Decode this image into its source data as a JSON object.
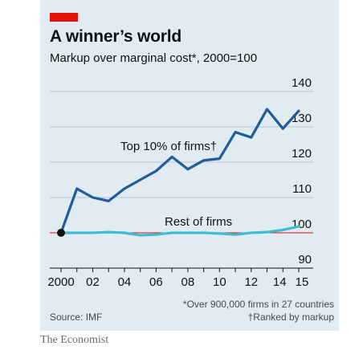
{
  "header": {
    "title": "A winner’s world",
    "subtitle": "Markup over marginal cost*, 2000=100"
  },
  "chart_data": {
    "type": "line",
    "title": "A winner’s world",
    "subtitle": "Markup over marginal cost*, 2000=100",
    "ylim": [
      90,
      140
    ],
    "yticks": [
      90,
      100,
      110,
      120,
      130,
      140
    ],
    "xticks": [
      2000,
      2002,
      2004,
      2006,
      2008,
      2010,
      2012,
      2014,
      2015
    ],
    "xtick_labels": [
      "2000",
      "02",
      "04",
      "06",
      "08",
      "10",
      "12",
      "14",
      "15"
    ],
    "grid": true,
    "baseline": 100,
    "series": [
      {
        "name": "Top 10% of firms†",
        "color": "#1f5c99",
        "x": [
          2000,
          2001,
          2002,
          2003,
          2004,
          2005,
          2006,
          2007,
          2008,
          2009,
          2010,
          2011,
          2012,
          2013,
          2014,
          2015
        ],
        "values": [
          100,
          112.5,
          110,
          109,
          112.5,
          115,
          117.5,
          121.5,
          118,
          120.5,
          121,
          128.5,
          127,
          135,
          129.5,
          134.5
        ]
      },
      {
        "name": "Rest of firms",
        "color": "#3ebcd2",
        "x": [
          2000,
          2001,
          2002,
          2003,
          2004,
          2005,
          2006,
          2007,
          2008,
          2009,
          2010,
          2011,
          2012,
          2013,
          2014,
          2015
        ],
        "values": [
          100,
          100,
          100,
          100.2,
          100,
          99.3,
          99.5,
          100,
          100,
          100,
          99.8,
          99.5,
          100,
          100.2,
          100.8,
          101.8
        ]
      }
    ]
  },
  "notes": {
    "footnote_1": "*Over 900,000 firms in 27 countries",
    "footnote_2": "†Ranked by markup",
    "source": "Source: IMF",
    "brand": "The Economist"
  },
  "colors": {
    "accent_red": "#e3120b",
    "panel_bg": "#e1ebf2",
    "top_series": "#1f5c99",
    "rest_series": "#3ebcd2"
  }
}
